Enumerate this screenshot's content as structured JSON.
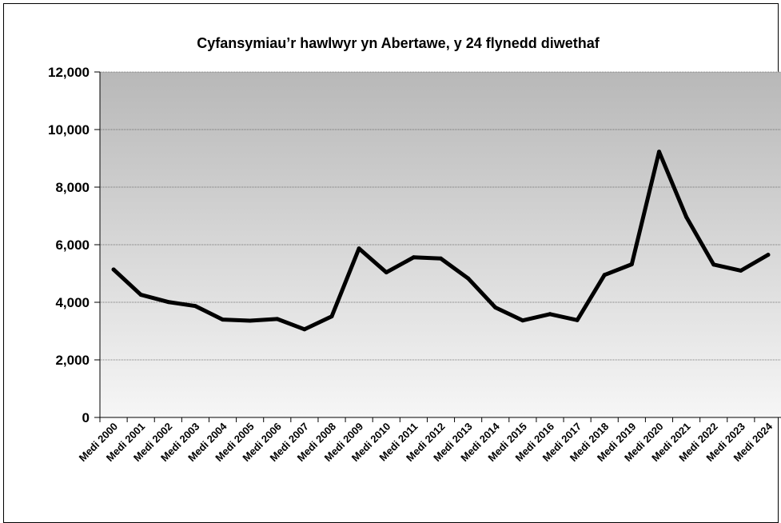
{
  "chart_data": {
    "type": "line",
    "title": "Cyfansymiau’r hawlwyr yn Abertawe, y 24 flynedd diwethaf",
    "xlabel": "",
    "ylabel": "",
    "ylim": [
      0,
      12000
    ],
    "yticks": [
      0,
      2000,
      4000,
      6000,
      8000,
      10000,
      12000
    ],
    "ytick_labels": [
      "0",
      "2,000",
      "4,000",
      "6,000",
      "8,000",
      "10,000",
      "12,000"
    ],
    "grid": true,
    "legend": "none",
    "line_color": "#000000",
    "categories": [
      "Medi 2000",
      "Medi 2001",
      "Medi 2002",
      "Medi 2003",
      "Medi 2004",
      "Medi 2005",
      "Medi 2006",
      "Medi 2007",
      "Medi 2008",
      "Medi 2009",
      "Medi 2010",
      "Medi 2011",
      "Medi 2012",
      "Medi 2013",
      "Medi 2014",
      "Medi 2015",
      "Medi 2016",
      "Medi 2017",
      "Medi 2018",
      "Medi 2019",
      "Medi 2020",
      "Medi 2021",
      "Medi 2022",
      "Medi 2023",
      "Medi 2024"
    ],
    "series": [
      {
        "values": [
          5140,
          4260,
          4010,
          3870,
          3400,
          3360,
          3420,
          3060,
          3510,
          5870,
          5040,
          5560,
          5520,
          4830,
          3820,
          3370,
          3590,
          3380,
          4950,
          5320,
          9230,
          6960,
          5310,
          5100,
          5650
        ]
      }
    ]
  }
}
